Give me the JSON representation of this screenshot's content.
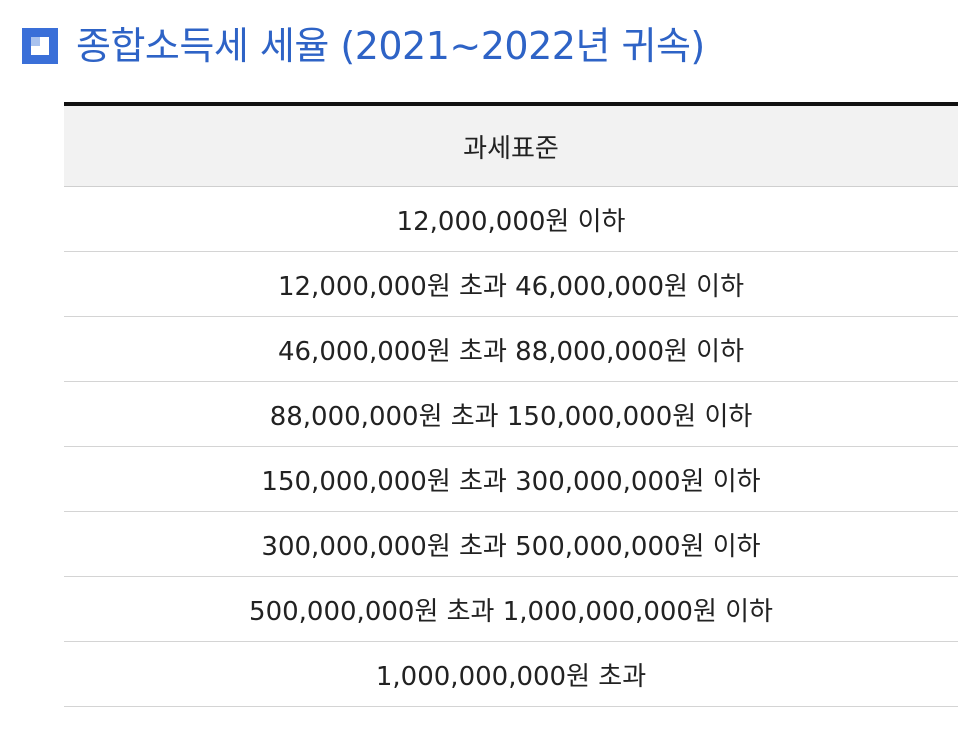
{
  "heading": {
    "icon": "square-bullet-icon",
    "title": "종합소득세 세율 (2021~2022년 귀속)"
  },
  "colors": {
    "title": "#2e63c6",
    "icon": "#3a6fd8",
    "header_bg": "#f2f2f2",
    "top_border": "#111111"
  },
  "table": {
    "header": "과세표준",
    "rows": [
      "12,000,000원 이하",
      "12,000,000원 초과 46,000,000원 이하",
      "46,000,000원 초과 88,000,000원 이하",
      "88,000,000원 초과 150,000,000원 이하",
      "150,000,000원 초과 300,000,000원 이하",
      "300,000,000원 초과 500,000,000원 이하",
      "500,000,000원 초과 1,000,000,000원 이하",
      "1,000,000,000원 초과"
    ]
  }
}
